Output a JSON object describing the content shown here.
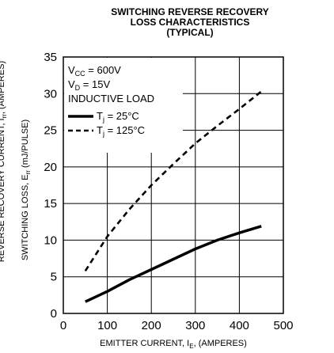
{
  "chart_data": {
    "type": "line",
    "title_lines": [
      "SWITCHING REVERSE RECOVERY",
      "LOSS CHARACTERISTICS",
      "(TYPICAL)"
    ],
    "xlabel": {
      "main": "EMITTER CURRENT, I",
      "sub": "E",
      "tail": ", (AMPERES)"
    },
    "ylabel": {
      "main": "SWITCHING LOSS, E",
      "sub": "rr",
      "tail": " (mJ/PULSE)"
    },
    "second_ylabel": {
      "main": "REVERSE RECOVERY CURRENT, I",
      "sub": "rr",
      "tail": ", (AMPERES)"
    },
    "xlim": [
      0,
      500
    ],
    "ylim": [
      0,
      35
    ],
    "xticks": [
      "0",
      "100",
      "200",
      "300",
      "400",
      "500"
    ],
    "yticks": [
      "0",
      "5",
      "10",
      "15",
      "20",
      "25",
      "30",
      "35"
    ],
    "grid": true,
    "conditions": [
      {
        "main": "V",
        "sub": "CC",
        "tail": " = 600V"
      },
      {
        "main": "V",
        "sub": "D",
        "tail": " = 15V"
      },
      {
        "main": "INDUCTIVE LOAD",
        "sub": "",
        "tail": ""
      }
    ],
    "series": [
      {
        "name": {
          "main": "T",
          "sub": "j",
          "tail": " = 25°C"
        },
        "style": "solid",
        "x": [
          50,
          100,
          150,
          200,
          250,
          300,
          350,
          400,
          450
        ],
        "y": [
          1.6,
          3.0,
          4.6,
          6.0,
          7.4,
          8.8,
          10.0,
          11.0,
          11.9
        ]
      },
      {
        "name": {
          "main": "T",
          "sub": "j",
          "tail": " = 125°C"
        },
        "style": "dashed",
        "x": [
          50,
          100,
          150,
          200,
          250,
          300,
          350,
          400,
          450
        ],
        "y": [
          5.8,
          10.5,
          14.2,
          17.5,
          20.4,
          23.2,
          25.6,
          27.9,
          30.3
        ]
      }
    ]
  }
}
